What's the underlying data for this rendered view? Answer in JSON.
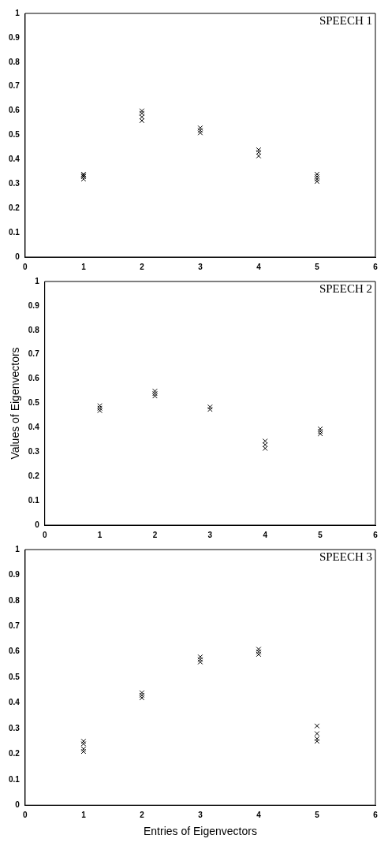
{
  "chart_data": [
    {
      "type": "scatter",
      "annotations": [
        "SPEECH 1"
      ],
      "marker": "cross",
      "xlim": [
        0,
        6
      ],
      "xticks": [
        0,
        1,
        2,
        3,
        4,
        5,
        6
      ],
      "ylim": [
        0,
        1
      ],
      "yticks": [
        0,
        0.1,
        0.2,
        0.3,
        0.4,
        0.5,
        0.6,
        0.7,
        0.8,
        0.9,
        1
      ],
      "grid": false,
      "legend": false,
      "series": [
        {
          "color": "#000000",
          "x": [
            1,
            1,
            1,
            1,
            2,
            2,
            2,
            2,
            3,
            3,
            3,
            4,
            4,
            4,
            5,
            5,
            5,
            5
          ],
          "values": [
            0.32,
            0.33,
            0.335,
            0.34,
            0.56,
            0.575,
            0.59,
            0.6,
            0.51,
            0.52,
            0.53,
            0.415,
            0.43,
            0.44,
            0.31,
            0.32,
            0.33,
            0.34
          ]
        }
      ]
    },
    {
      "type": "scatter",
      "ylabel": "Values of Eigenvectors",
      "annotations": [
        "SPEECH 2"
      ],
      "marker": "cross",
      "xlim": [
        0,
        6
      ],
      "xticks": [
        0,
        1,
        2,
        3,
        4,
        5,
        6
      ],
      "ylim": [
        0,
        1
      ],
      "yticks": [
        0,
        0.1,
        0.2,
        0.3,
        0.4,
        0.5,
        0.6,
        0.7,
        0.8,
        0.9,
        1
      ],
      "grid": false,
      "legend": false,
      "series": [
        {
          "color": "#000000",
          "x": [
            1,
            1,
            1,
            2,
            2,
            2,
            3,
            3,
            4,
            4,
            4,
            5,
            5,
            5
          ],
          "values": [
            0.47,
            0.48,
            0.49,
            0.53,
            0.54,
            0.55,
            0.475,
            0.485,
            0.315,
            0.33,
            0.345,
            0.375,
            0.385,
            0.395
          ]
        }
      ]
    },
    {
      "type": "scatter",
      "xlabel": "Entries of Eigenvectors",
      "annotations": [
        "SPEECH 3"
      ],
      "marker": "cross",
      "xlim": [
        0,
        6
      ],
      "xticks": [
        0,
        1,
        2,
        3,
        4,
        5,
        6
      ],
      "ylim": [
        0,
        1
      ],
      "yticks": [
        0,
        0.1,
        0.2,
        0.3,
        0.4,
        0.5,
        0.6,
        0.7,
        0.8,
        0.9,
        1
      ],
      "grid": false,
      "legend": false,
      "series": [
        {
          "color": "#000000",
          "x": [
            1,
            1,
            1,
            1,
            2,
            2,
            2,
            3,
            3,
            3,
            4,
            4,
            4,
            5,
            5,
            5,
            5
          ],
          "values": [
            0.21,
            0.22,
            0.24,
            0.25,
            0.42,
            0.43,
            0.44,
            0.56,
            0.57,
            0.58,
            0.59,
            0.6,
            0.61,
            0.25,
            0.26,
            0.28,
            0.31
          ]
        }
      ]
    }
  ]
}
